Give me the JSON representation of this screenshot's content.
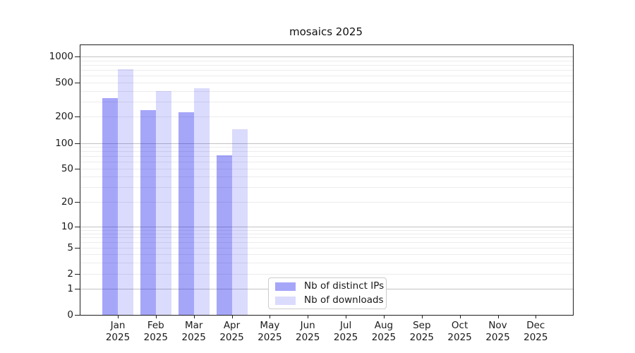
{
  "figure": {
    "title": "mosaics 2025"
  },
  "chart_data": {
    "type": "bar",
    "title": "mosaics 2025",
    "xlabel": "",
    "ylabel": "",
    "yscale": "symlog",
    "yticks": [
      0,
      1,
      2,
      5,
      10,
      20,
      50,
      100,
      200,
      500,
      1000
    ],
    "ylim": [
      0,
      1350
    ],
    "grid": "horizontal, major and minor",
    "legend_position": "inside bottom-center",
    "categories": [
      "Jan",
      "Feb",
      "Mar",
      "Apr",
      "May",
      "Jun",
      "Jul",
      "Aug",
      "Sep",
      "Oct",
      "Nov",
      "Dec"
    ],
    "year_label": "2025",
    "series": [
      {
        "name": "Nb of distinct IPs",
        "color": "rgba(0,0,238,0.35)",
        "values": [
          330,
          240,
          225,
          72,
          null,
          null,
          null,
          null,
          null,
          null,
          null,
          null
        ]
      },
      {
        "name": "Nb of downloads",
        "color": "rgba(0,0,238,0.14)",
        "values": [
          715,
          400,
          430,
          145,
          null,
          null,
          null,
          null,
          null,
          null,
          null,
          null
        ]
      }
    ],
    "colors": {
      "major_grid": "#c3c3c3",
      "minor_grid": "#ececec",
      "axis": "#1f1f1f",
      "background": "#ffffff"
    }
  }
}
